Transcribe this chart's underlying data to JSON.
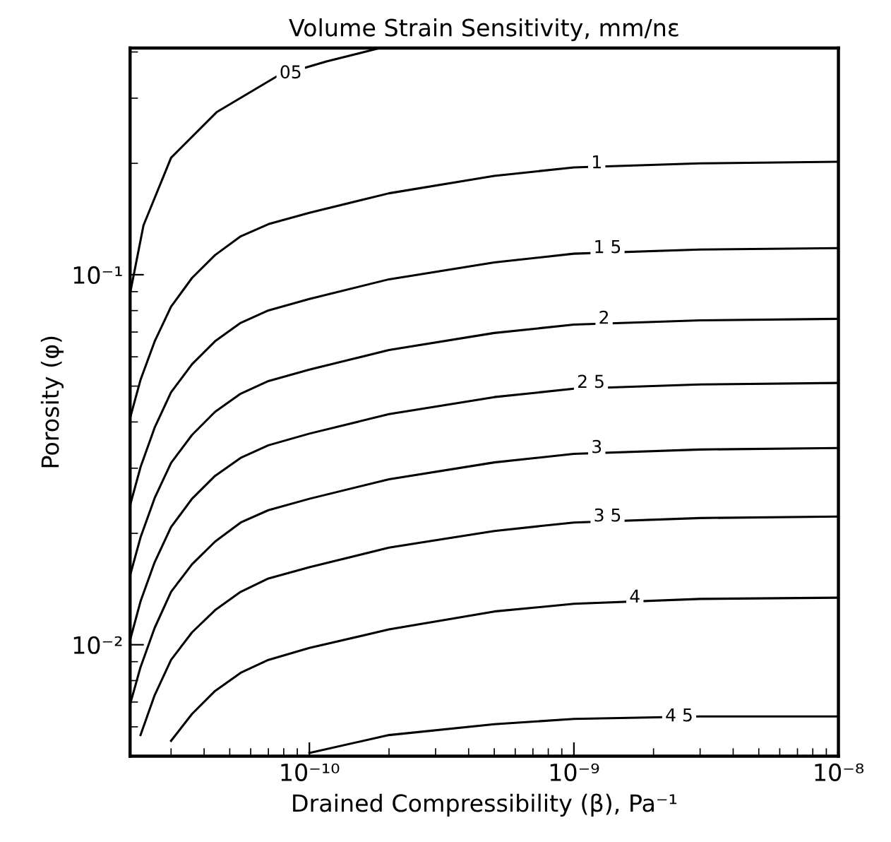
{
  "chart_data": {
    "type": "line",
    "title": "Volume Strain Sensitivity, mm/nε",
    "xlabel": "Drained Compressibility (β), Pa⁻¹",
    "ylabel": "Porosity (φ)",
    "log": "xy",
    "xlim": [
      2.1e-11,
      1e-08
    ],
    "ylim": [
      0.005,
      0.41
    ],
    "xticks": [
      {
        "value": 1e-10,
        "label": "10⁻¹⁰"
      },
      {
        "value": 1e-09,
        "label": "10⁻⁹"
      },
      {
        "value": 1e-08,
        "label": "10⁻⁸"
      }
    ],
    "yticks": [
      {
        "value": 0.01,
        "label": "10⁻²"
      },
      {
        "value": 0.1,
        "label": "10⁻¹"
      }
    ],
    "grid": false,
    "legend": false,
    "marker": "none",
    "line_style": "solid",
    "series": [
      {
        "color": "#000000",
        "x": [
          2.1e-11,
          2.36e-11,
          3e-11,
          4.46e-11,
          7.6e-11,
          1.16e-10,
          1.85e-10
        ],
        "values": [
          0.089,
          0.136,
          0.207,
          0.275,
          0.345,
          0.377,
          0.41
        ]
      },
      {
        "color": "#000000",
        "x": [
          2.1e-11,
          2.3e-11,
          2.6e-11,
          3e-11,
          3.6e-11,
          4.4e-11,
          5.5e-11,
          7e-11,
          1e-10,
          2e-10,
          5e-10,
          1e-09,
          3e-09,
          1e-08
        ],
        "values": [
          0.041,
          0.052,
          0.066,
          0.082,
          0.098,
          0.113,
          0.127,
          0.137,
          0.147,
          0.166,
          0.185,
          0.195,
          0.2,
          0.202
        ]
      },
      {
        "color": "#000000",
        "x": [
          2.1e-11,
          2.3e-11,
          2.6e-11,
          3e-11,
          3.6e-11,
          4.4e-11,
          5.5e-11,
          7e-11,
          1e-10,
          2e-10,
          5e-10,
          1e-09,
          3e-09,
          1e-08
        ],
        "values": [
          0.0238,
          0.0302,
          0.0386,
          0.0481,
          0.0573,
          0.0661,
          0.0741,
          0.0801,
          0.086,
          0.0972,
          0.108,
          0.114,
          0.117,
          0.118
        ]
      },
      {
        "color": "#000000",
        "x": [
          2.1e-11,
          2.3e-11,
          2.6e-11,
          3e-11,
          3.6e-11,
          4.4e-11,
          5.5e-11,
          7e-11,
          1e-10,
          2e-10,
          5e-10,
          1e-09,
          3e-09,
          1e-08
        ],
        "values": [
          0.0154,
          0.0195,
          0.0249,
          0.031,
          0.0369,
          0.0426,
          0.0477,
          0.0516,
          0.0554,
          0.0626,
          0.0696,
          0.0733,
          0.0753,
          0.076
        ]
      },
      {
        "color": "#000000",
        "x": [
          2.1e-11,
          2.3e-11,
          2.6e-11,
          3e-11,
          3.6e-11,
          4.4e-11,
          5.5e-11,
          7e-11,
          1e-10,
          2e-10,
          5e-10,
          1e-09,
          3e-09,
          1e-08
        ],
        "values": [
          0.0103,
          0.0131,
          0.0167,
          0.0208,
          0.0248,
          0.0286,
          0.032,
          0.0346,
          0.0372,
          0.042,
          0.0467,
          0.0492,
          0.0505,
          0.051
        ]
      },
      {
        "color": "#000000",
        "x": [
          2.1e-11,
          2.3e-11,
          2.6e-11,
          3e-11,
          3.6e-11,
          4.4e-11,
          5.5e-11,
          7e-11,
          1e-10,
          2e-10,
          5e-10,
          1e-09,
          3e-09,
          1e-08
        ],
        "values": [
          0.0069,
          0.0087,
          0.0111,
          0.0139,
          0.0165,
          0.019,
          0.0214,
          0.0231,
          0.0248,
          0.028,
          0.0311,
          0.0328,
          0.0337,
          0.034
        ]
      },
      {
        "color": "#000000",
        "x": [
          2.3e-11,
          2.6e-11,
          3e-11,
          3.6e-11,
          4.4e-11,
          5.5e-11,
          7e-11,
          1e-10,
          2e-10,
          5e-10,
          1e-09,
          3e-09,
          1e-08
        ],
        "values": [
          0.0057,
          0.0073,
          0.0091,
          0.0108,
          0.0124,
          0.0139,
          0.0151,
          0.0162,
          0.0183,
          0.0203,
          0.0214,
          0.022,
          0.0222
        ]
      },
      {
        "color": "#000000",
        "x": [
          3e-11,
          3.6e-11,
          4.4e-11,
          5.5e-11,
          7e-11,
          1e-10,
          2e-10,
          5e-10,
          1e-09,
          3e-09,
          1e-08
        ],
        "values": [
          0.0055,
          0.0065,
          0.0075,
          0.0084,
          0.0091,
          0.0098,
          0.011,
          0.0123,
          0.0129,
          0.0133,
          0.0134
        ]
      },
      {
        "color": "#000000",
        "x": [
          1e-10,
          2e-10,
          5e-10,
          1e-09,
          3e-09,
          1e-08
        ],
        "values": [
          0.0051,
          0.0057,
          0.0061,
          0.0063,
          0.0064,
          0.0064
        ]
      }
    ],
    "annotations": [
      {
        "text": "05",
        "x": 8.5e-11,
        "y": 0.35
      },
      {
        "text": "1",
        "x": 1.22e-09,
        "y": 0.2
      },
      {
        "text": "1 5",
        "x": 1.34e-09,
        "y": 0.118
      },
      {
        "text": "2",
        "x": 1.3e-09,
        "y": 0.076
      },
      {
        "text": "2 5",
        "x": 1.16e-09,
        "y": 0.051
      },
      {
        "text": "3",
        "x": 1.22e-09,
        "y": 0.034
      },
      {
        "text": "3 5",
        "x": 1.34e-09,
        "y": 0.0222
      },
      {
        "text": "4",
        "x": 1.7e-09,
        "y": 0.0134
      },
      {
        "text": "4 5",
        "x": 2.5e-09,
        "y": 0.0064
      }
    ]
  }
}
